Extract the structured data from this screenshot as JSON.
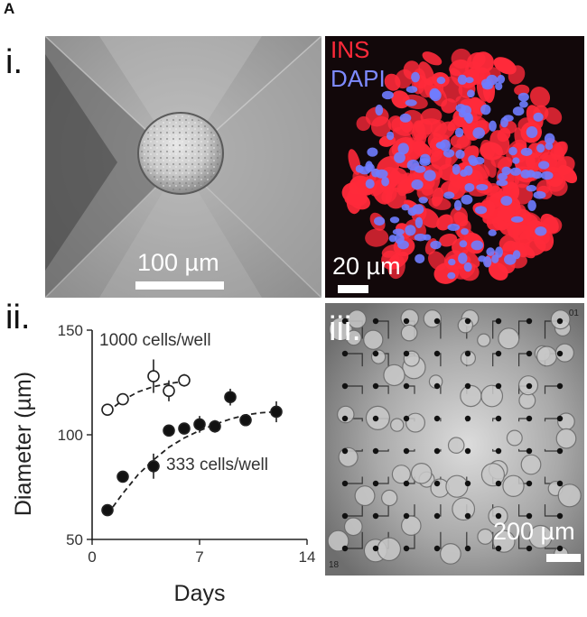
{
  "figure": {
    "panel_letter": "A",
    "sub_i": "i.",
    "sub_ii": "ii.",
    "sub_iii": "iii."
  },
  "panel_bright": {
    "scale_label": "100 µm"
  },
  "panel_fluor": {
    "label_ins": "INS",
    "label_dapi": "DAPI",
    "scale_label": "20 µm",
    "colors": {
      "ins": "#ff2a3a",
      "dapi": "#6f7dff",
      "background": "#12080a"
    }
  },
  "panel_mea": {
    "scale_label": "200 µm",
    "corner_top": "01",
    "corner_bottom": "18"
  },
  "chart_data": {
    "type": "scatter",
    "xlabel": "Days",
    "ylabel": "Diameter (µm)",
    "xlim": [
      0,
      14
    ],
    "ylim": [
      50,
      150
    ],
    "xticks": [
      0,
      7,
      14
    ],
    "yticks": [
      50,
      100,
      150
    ],
    "series": [
      {
        "name": "1000 cells/well",
        "marker": "open-circle",
        "points": [
          {
            "x": 1,
            "y": 112,
            "err": 2
          },
          {
            "x": 2,
            "y": 117,
            "err": 2
          },
          {
            "x": 4,
            "y": 128,
            "err": 8
          },
          {
            "x": 5,
            "y": 121,
            "err": 5
          },
          {
            "x": 6,
            "y": 126,
            "err": 3
          }
        ],
        "fit": [
          [
            1,
            111
          ],
          [
            2,
            116.5
          ],
          [
            3,
            120.5
          ],
          [
            4,
            123
          ],
          [
            5,
            124.5
          ],
          [
            6,
            125.5
          ]
        ]
      },
      {
        "name": "333 cells/well",
        "marker": "filled-circle",
        "points": [
          {
            "x": 1,
            "y": 64,
            "err": 2
          },
          {
            "x": 2,
            "y": 80,
            "err": 2
          },
          {
            "x": 4,
            "y": 85,
            "err": 6
          },
          {
            "x": 5,
            "y": 102,
            "err": 2
          },
          {
            "x": 6,
            "y": 103,
            "err": 2
          },
          {
            "x": 7,
            "y": 105,
            "err": 4
          },
          {
            "x": 8,
            "y": 104,
            "err": 3
          },
          {
            "x": 9,
            "y": 118,
            "err": 4
          },
          {
            "x": 10,
            "y": 107,
            "err": 2
          },
          {
            "x": 12,
            "y": 111,
            "err": 5
          }
        ],
        "fit": [
          [
            1,
            62
          ],
          [
            2,
            72
          ],
          [
            3,
            81
          ],
          [
            4,
            88
          ],
          [
            5,
            94
          ],
          [
            6,
            98.5
          ],
          [
            7,
            102
          ],
          [
            8,
            105
          ],
          [
            9,
            107.5
          ],
          [
            10,
            109.5
          ],
          [
            11,
            110.5
          ],
          [
            12,
            111
          ]
        ]
      }
    ],
    "annotations": [
      "1000 cells/well",
      "333 cells/well"
    ]
  }
}
